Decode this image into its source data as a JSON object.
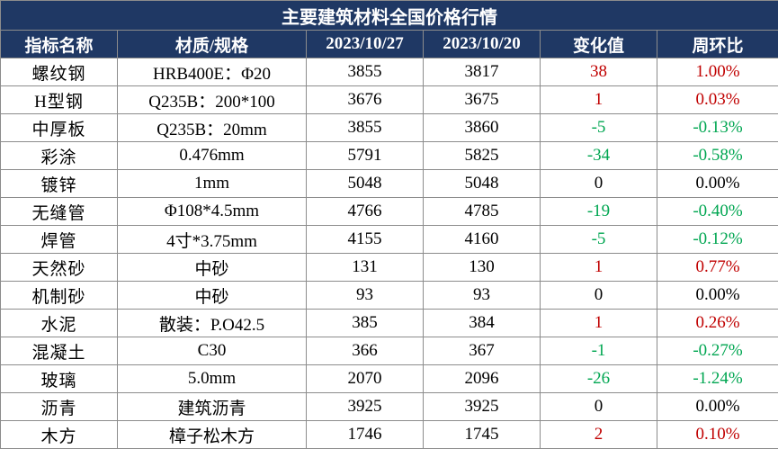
{
  "title": "主要建筑材料全国价格行情",
  "headers": [
    "指标名称",
    "材质/规格",
    "2023/10/27",
    "2023/10/20",
    "变化值",
    "周环比"
  ],
  "colors": {
    "header_bg": "#1f3864",
    "up": "#c00000",
    "down": "#00a651",
    "flat": "#000000"
  },
  "rows": [
    {
      "name": "螺纹钢",
      "spec": "HRB400E：Φ20",
      "current": "3855",
      "previous": "3817",
      "change": "38",
      "pct": "1.00%",
      "trend": "up"
    },
    {
      "name": "H型钢",
      "spec": "Q235B：200*100",
      "current": "3676",
      "previous": "3675",
      "change": "1",
      "pct": "0.03%",
      "trend": "up"
    },
    {
      "name": "中厚板",
      "spec": "Q235B：20mm",
      "current": "3855",
      "previous": "3860",
      "change": "-5",
      "pct": "-0.13%",
      "trend": "down"
    },
    {
      "name": "彩涂",
      "spec": "0.476mm",
      "current": "5791",
      "previous": "5825",
      "change": "-34",
      "pct": "-0.58%",
      "trend": "down"
    },
    {
      "name": "镀锌",
      "spec": "1mm",
      "current": "5048",
      "previous": "5048",
      "change": "0",
      "pct": "0.00%",
      "trend": "flat"
    },
    {
      "name": "无缝管",
      "spec": "Φ108*4.5mm",
      "current": "4766",
      "previous": "4785",
      "change": "-19",
      "pct": "-0.40%",
      "trend": "down"
    },
    {
      "name": "焊管",
      "spec": "4寸*3.75mm",
      "current": "4155",
      "previous": "4160",
      "change": "-5",
      "pct": "-0.12%",
      "trend": "down"
    },
    {
      "name": "天然砂",
      "spec": "中砂",
      "current": "131",
      "previous": "130",
      "change": "1",
      "pct": "0.77%",
      "trend": "up"
    },
    {
      "name": "机制砂",
      "spec": "中砂",
      "current": "93",
      "previous": "93",
      "change": "0",
      "pct": "0.00%",
      "trend": "flat"
    },
    {
      "name": "水泥",
      "spec": "散装：P.O42.5",
      "current": "385",
      "previous": "384",
      "change": "1",
      "pct": "0.26%",
      "trend": "up"
    },
    {
      "name": "混凝土",
      "spec": "C30",
      "current": "366",
      "previous": "367",
      "change": "-1",
      "pct": "-0.27%",
      "trend": "down"
    },
    {
      "name": "玻璃",
      "spec": "5.0mm",
      "current": "2070",
      "previous": "2096",
      "change": "-26",
      "pct": "-1.24%",
      "trend": "down"
    },
    {
      "name": "沥青",
      "spec": "建筑沥青",
      "current": "3925",
      "previous": "3925",
      "change": "0",
      "pct": "0.00%",
      "trend": "flat"
    },
    {
      "name": "木方",
      "spec": "樟子松木方",
      "current": "1746",
      "previous": "1745",
      "change": "2",
      "pct": "0.10%",
      "trend": "up"
    }
  ]
}
